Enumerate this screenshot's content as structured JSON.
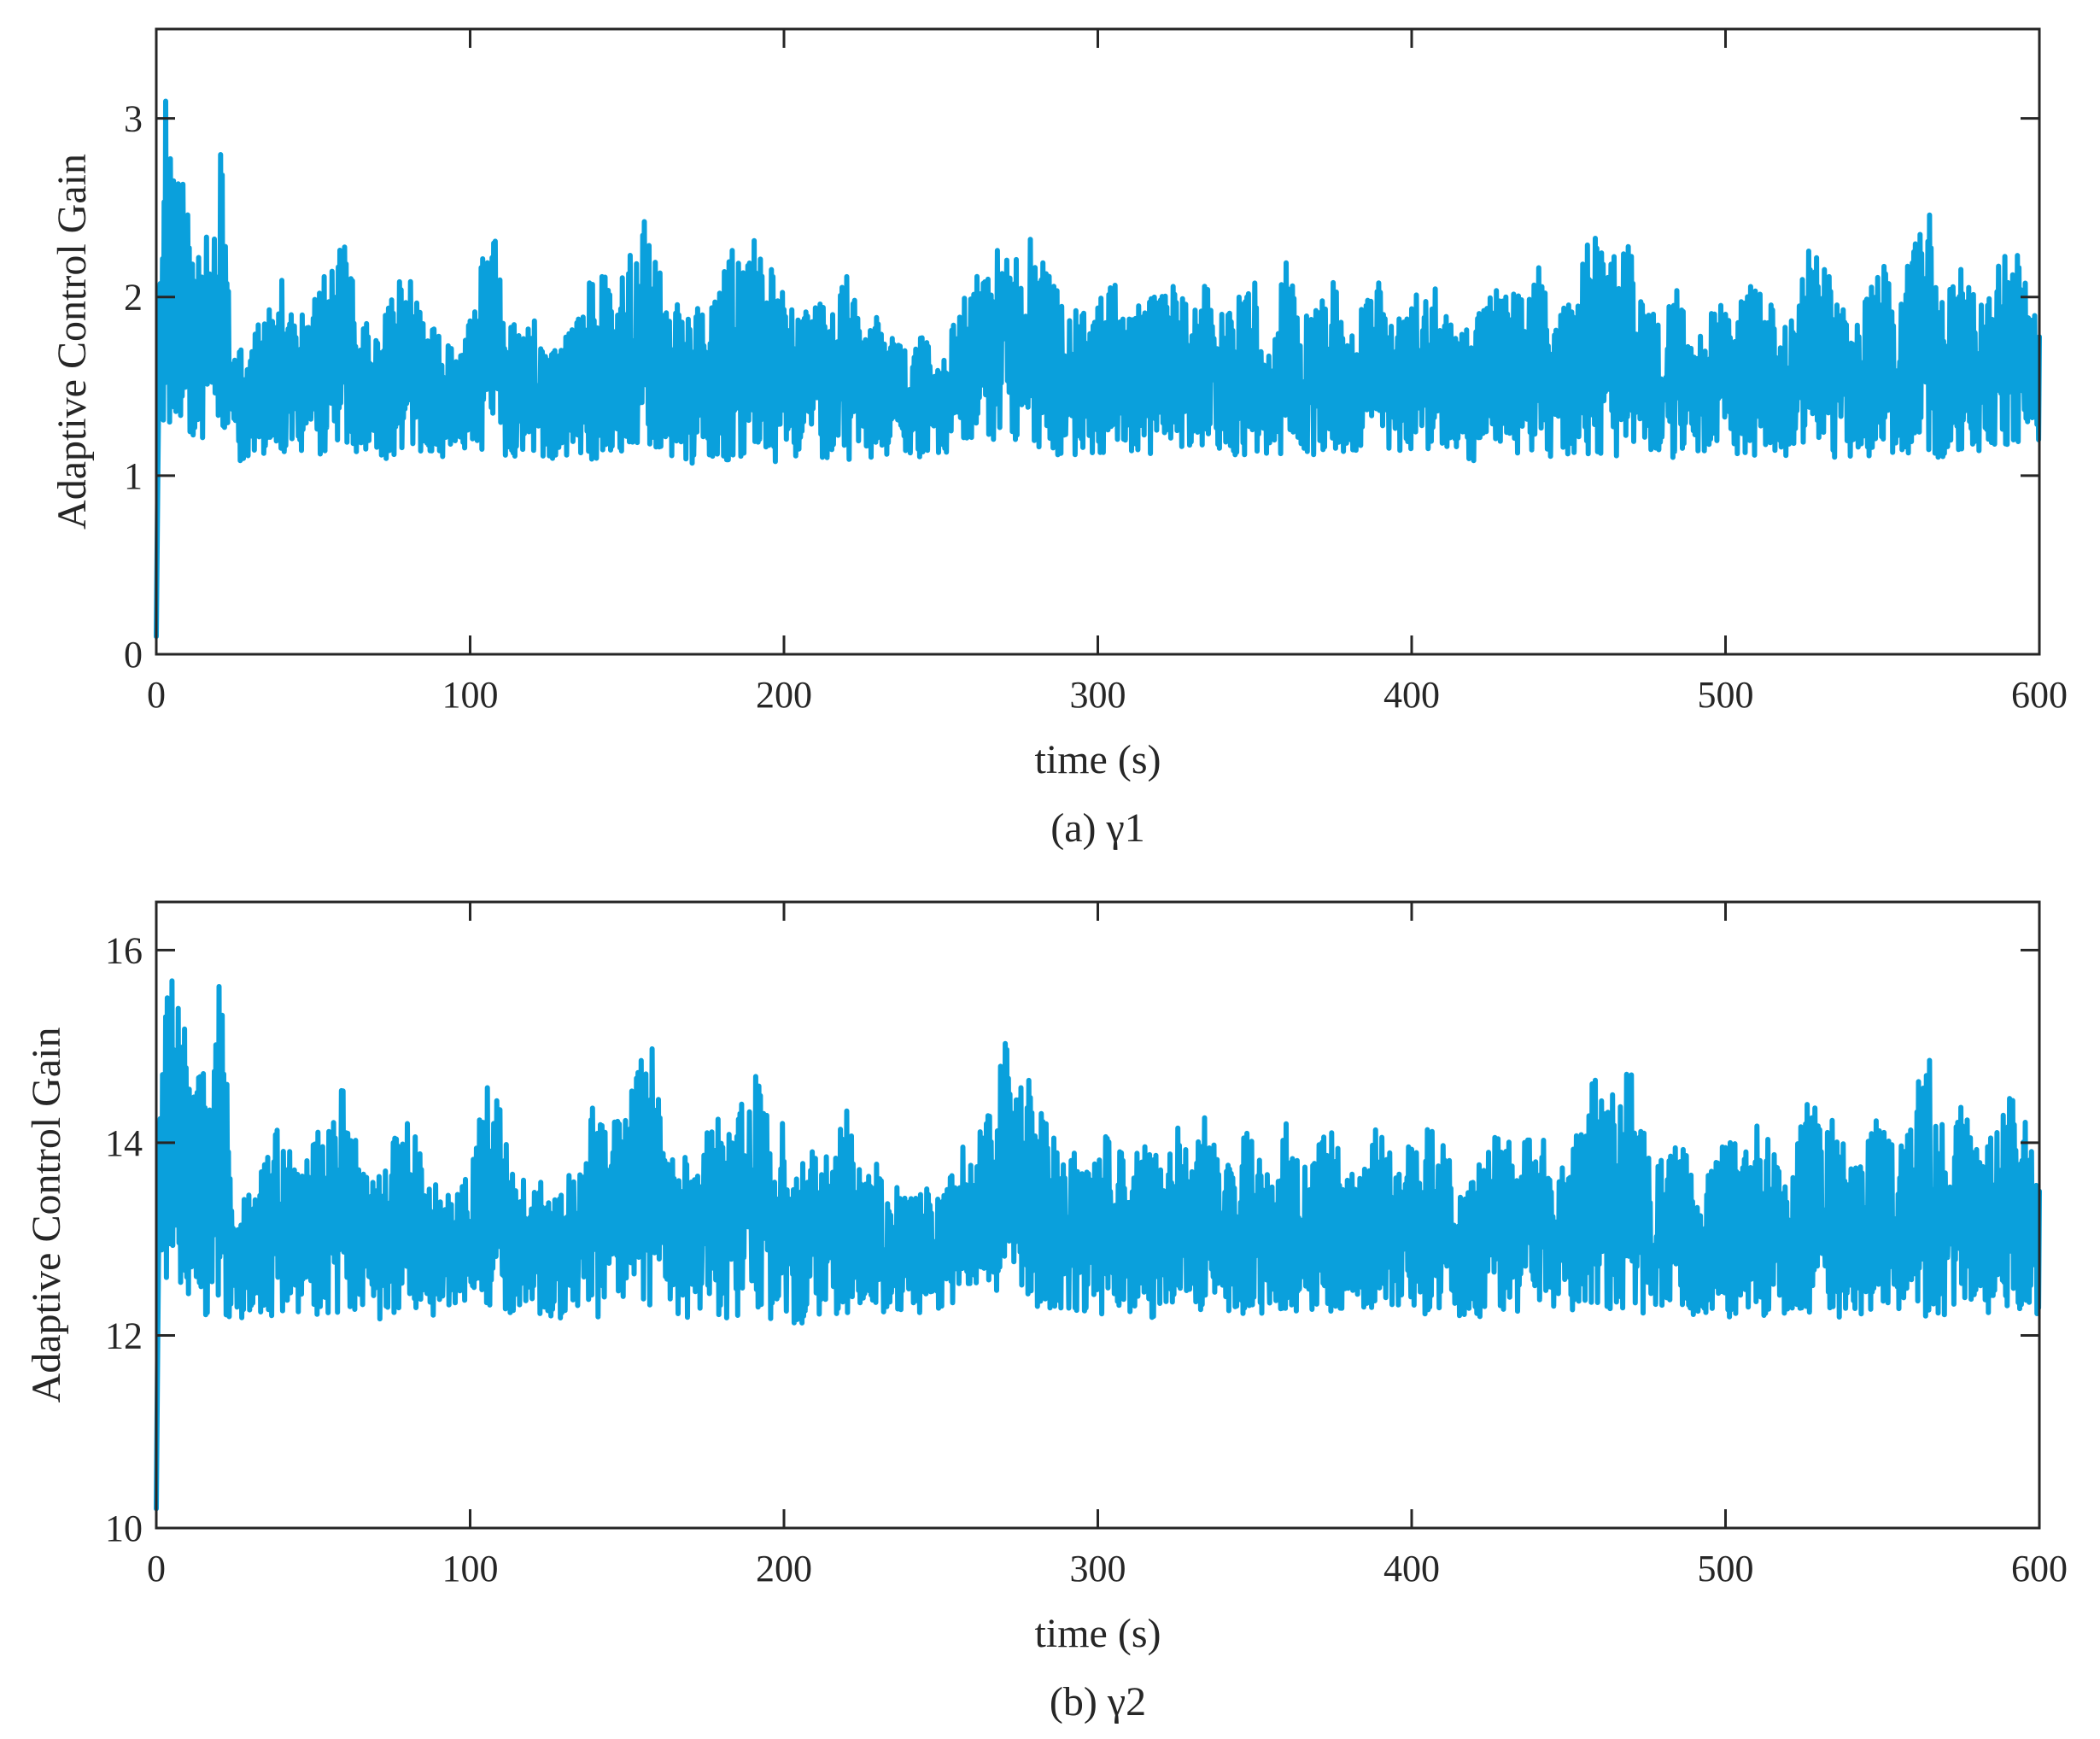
{
  "chart_data": [
    {
      "type": "line",
      "caption": "(a) γ1",
      "xlabel": "time (s)",
      "ylabel": "Adaptive Control Gain",
      "xlim": [
        0,
        600
      ],
      "ylim": [
        0,
        3.5
      ],
      "xticks": [
        0,
        100,
        200,
        300,
        400,
        500,
        600
      ],
      "yticks": [
        0,
        1,
        2,
        3
      ],
      "grid": false,
      "series": [
        {
          "color": "#0aa0dc",
          "x": [
            0,
            1,
            2,
            3,
            4,
            5,
            6,
            8,
            9,
            10,
            12,
            14,
            16,
            18,
            20,
            22,
            24,
            26,
            30,
            35,
            40,
            45,
            50,
            55,
            60,
            65,
            70,
            75,
            80,
            85,
            90,
            95,
            100,
            105,
            108,
            110,
            115,
            120,
            125,
            130,
            135,
            140,
            145,
            150,
            155,
            158,
            160,
            165,
            170,
            175,
            180,
            185,
            190,
            195,
            200,
            205,
            210,
            215,
            220,
            225,
            230,
            235,
            240,
            245,
            250,
            255,
            260,
            265,
            268,
            271,
            273,
            276,
            280,
            285,
            290,
            295,
            300,
            305,
            310,
            315,
            320,
            325,
            330,
            335,
            340,
            345,
            350,
            355,
            360,
            365,
            370,
            375,
            380,
            385,
            390,
            395,
            400,
            405,
            410,
            415,
            420,
            425,
            430,
            435,
            440,
            445,
            450,
            455,
            458,
            462,
            466,
            470,
            475,
            480,
            485,
            490,
            495,
            500,
            505,
            510,
            515,
            520,
            525,
            530,
            535,
            540,
            545,
            550,
            555,
            560,
            565,
            570,
            575,
            580,
            585,
            590,
            595,
            600
          ],
          "y_upper": [
            0.1,
            1.9,
            2.6,
            3.1,
            2.7,
            2.9,
            2.5,
            2.9,
            2.8,
            2.5,
            2.2,
            2.4,
            2.5,
            2.2,
            2.9,
            2.5,
            1.8,
            1.7,
            1.8,
            1.9,
            2.1,
            1.9,
            2.0,
            2.2,
            2.3,
            1.9,
            1.8,
            2.0,
            2.2,
            1.9,
            1.8,
            1.7,
            1.9,
            2.3,
            2.55,
            2.1,
            1.8,
            1.9,
            1.7,
            1.8,
            1.9,
            2.3,
            2.1,
            2.2,
            2.5,
            2.5,
            2.3,
            2.0,
            1.9,
            2.1,
            2.2,
            2.3,
            2.4,
            2.2,
            2.1,
            1.9,
            2.0,
            1.9,
            2.2,
            1.8,
            1.9,
            1.8,
            1.7,
            1.8,
            1.7,
            1.9,
            2.1,
            2.2,
            2.3,
            2.65,
            2.4,
            2.4,
            2.35,
            2.1,
            2.0,
            1.9,
            2.0,
            2.1,
            1.9,
            2.0,
            2.0,
            2.1,
            1.9,
            2.2,
            1.9,
            2.0,
            2.1,
            1.8,
            2.2,
            1.9,
            2.0,
            2.1,
            1.8,
            2.0,
            2.1,
            1.9,
            2.0,
            2.1,
            2.0,
            1.8,
            1.9,
            2.0,
            2.1,
            2.0,
            2.2,
            1.9,
            2.0,
            2.3,
            2.35,
            2.2,
            2.3,
            2.4,
            2.0,
            1.9,
            2.1,
            1.8,
            1.9,
            2.0,
            2.0,
            2.1,
            2.0,
            1.8,
            2.3,
            2.2,
            2.1,
            1.9,
            2.0,
            2.2,
            2.0,
            2.3,
            2.5,
            2.0,
            2.2,
            2.0,
            2.1,
            2.3,
            2.2,
            1.8
          ],
          "y_lower": [
            0.1,
            1.0,
            1.2,
            1.3,
            1.25,
            1.2,
            1.25,
            1.2,
            1.2,
            1.2,
            1.2,
            1.15,
            1.1,
            1.15,
            1.1,
            1.1,
            1.05,
            1.05,
            1.1,
            1.1,
            1.1,
            1.12,
            1.1,
            1.1,
            1.12,
            1.1,
            1.08,
            1.1,
            1.12,
            1.1,
            1.1,
            1.12,
            1.1,
            1.15,
            1.15,
            1.1,
            1.1,
            1.12,
            1.1,
            1.08,
            1.1,
            1.08,
            1.1,
            1.12,
            1.1,
            1.15,
            1.1,
            1.1,
            1.05,
            1.1,
            1.08,
            1.1,
            1.1,
            1.08,
            1.05,
            1.05,
            1.1,
            1.1,
            1.05,
            1.1,
            1.1,
            1.12,
            1.1,
            1.1,
            1.12,
            1.15,
            1.2,
            1.2,
            1.2,
            1.25,
            1.2,
            1.2,
            1.15,
            1.1,
            1.08,
            1.1,
            1.1,
            1.1,
            1.12,
            1.08,
            1.1,
            1.1,
            1.1,
            1.12,
            1.1,
            1.08,
            1.1,
            1.1,
            1.12,
            1.1,
            1.1,
            1.08,
            1.1,
            1.1,
            1.12,
            1.1,
            1.1,
            1.1,
            1.12,
            1.1,
            1.08,
            1.1,
            1.1,
            1.1,
            1.12,
            1.1,
            1.1,
            1.1,
            1.08,
            1.1,
            1.1,
            1.12,
            1.1,
            1.08,
            1.1,
            1.1,
            1.12,
            1.1,
            1.08,
            1.1,
            1.1,
            1.1,
            1.12,
            1.1,
            1.1,
            1.08,
            1.1,
            1.12,
            1.1,
            1.1,
            1.1,
            1.1,
            1.12,
            1.1,
            1.1,
            1.1,
            1.15,
            1.1
          ]
        }
      ]
    },
    {
      "type": "line",
      "caption": "(b) γ2",
      "xlabel": "time (s)",
      "ylabel": "Adaptive Control Gain",
      "xlim": [
        0,
        600
      ],
      "ylim": [
        10,
        16.5
      ],
      "xticks": [
        0,
        100,
        200,
        300,
        400,
        500,
        600
      ],
      "yticks": [
        10,
        12,
        14,
        16
      ],
      "grid": false,
      "series": [
        {
          "color": "#0aa0dc",
          "x": [
            0,
            1,
            2,
            3,
            4,
            5,
            6,
            8,
            9,
            10,
            12,
            14,
            16,
            18,
            20,
            22,
            24,
            26,
            30,
            35,
            40,
            45,
            50,
            55,
            60,
            65,
            70,
            75,
            80,
            85,
            90,
            95,
            100,
            105,
            108,
            110,
            115,
            120,
            125,
            130,
            135,
            140,
            145,
            150,
            155,
            158,
            160,
            165,
            170,
            175,
            180,
            185,
            190,
            195,
            200,
            205,
            210,
            215,
            220,
            225,
            230,
            235,
            240,
            245,
            250,
            255,
            260,
            265,
            268,
            271,
            273,
            276,
            280,
            285,
            290,
            295,
            300,
            305,
            310,
            315,
            320,
            325,
            330,
            335,
            340,
            345,
            350,
            355,
            360,
            365,
            370,
            375,
            380,
            385,
            390,
            395,
            400,
            405,
            410,
            415,
            420,
            425,
            430,
            435,
            440,
            445,
            450,
            455,
            458,
            462,
            466,
            470,
            475,
            480,
            485,
            490,
            495,
            500,
            505,
            510,
            515,
            520,
            525,
            530,
            535,
            540,
            545,
            550,
            555,
            560,
            565,
            570,
            575,
            580,
            585,
            590,
            595,
            600
          ],
          "y_upper": [
            10.2,
            13.9,
            15.3,
            16.2,
            15.4,
            15.8,
            15.0,
            15.8,
            15.6,
            15.1,
            14.6,
            14.8,
            15.0,
            14.6,
            15.8,
            15.0,
            13.5,
            13.3,
            13.6,
            13.8,
            14.3,
            13.8,
            14.0,
            14.4,
            14.6,
            13.8,
            13.6,
            14.0,
            14.4,
            13.8,
            13.6,
            13.4,
            13.8,
            14.6,
            15.05,
            14.2,
            13.6,
            13.8,
            13.4,
            13.6,
            13.8,
            14.6,
            14.2,
            14.4,
            15.0,
            15.0,
            14.6,
            14.0,
            13.8,
            14.2,
            14.4,
            14.6,
            14.8,
            14.4,
            14.2,
            13.8,
            14.0,
            13.8,
            14.4,
            13.6,
            13.8,
            13.6,
            13.4,
            13.6,
            13.4,
            13.8,
            14.2,
            14.4,
            14.6,
            15.3,
            14.8,
            14.8,
            14.7,
            14.2,
            14.0,
            13.8,
            14.0,
            14.2,
            13.8,
            14.0,
            14.0,
            14.2,
            13.8,
            14.4,
            13.8,
            14.0,
            14.2,
            13.6,
            14.4,
            13.8,
            14.0,
            14.2,
            13.6,
            14.0,
            14.2,
            13.8,
            14.0,
            14.2,
            14.0,
            13.6,
            13.8,
            14.0,
            14.2,
            14.0,
            14.4,
            13.8,
            14.0,
            14.6,
            14.7,
            14.4,
            14.6,
            14.8,
            14.0,
            13.8,
            14.2,
            13.6,
            13.8,
            14.0,
            14.0,
            14.2,
            14.0,
            13.6,
            14.6,
            14.4,
            14.2,
            13.8,
            14.0,
            14.4,
            14.0,
            14.6,
            15.0,
            14.0,
            14.4,
            14.0,
            14.2,
            14.6,
            14.4,
            13.6
          ],
          "y_lower": [
            10.2,
            12.0,
            12.4,
            12.6,
            12.5,
            12.4,
            12.5,
            12.4,
            12.4,
            12.4,
            12.4,
            12.3,
            12.2,
            12.3,
            12.2,
            12.2,
            12.1,
            12.1,
            12.2,
            12.2,
            12.2,
            12.24,
            12.2,
            12.2,
            12.24,
            12.2,
            12.16,
            12.2,
            12.24,
            12.2,
            12.2,
            12.24,
            12.2,
            12.3,
            12.3,
            12.2,
            12.2,
            12.24,
            12.2,
            12.16,
            12.2,
            12.16,
            12.2,
            12.24,
            12.2,
            12.3,
            12.2,
            12.2,
            12.1,
            12.2,
            12.16,
            12.2,
            12.2,
            12.16,
            12.1,
            12.1,
            12.2,
            12.2,
            12.1,
            12.2,
            12.2,
            12.24,
            12.2,
            12.2,
            12.24,
            12.3,
            12.4,
            12.4,
            12.4,
            12.5,
            12.4,
            12.4,
            12.3,
            12.2,
            12.16,
            12.2,
            12.2,
            12.2,
            12.24,
            12.16,
            12.2,
            12.2,
            12.2,
            12.24,
            12.2,
            12.16,
            12.2,
            12.2,
            12.24,
            12.2,
            12.2,
            12.16,
            12.2,
            12.2,
            12.24,
            12.2,
            12.2,
            12.2,
            12.24,
            12.2,
            12.16,
            12.2,
            12.2,
            12.2,
            12.24,
            12.2,
            12.2,
            12.2,
            12.16,
            12.2,
            12.2,
            12.24,
            12.2,
            12.16,
            12.2,
            12.2,
            12.24,
            12.2,
            12.16,
            12.2,
            12.2,
            12.2,
            12.24,
            12.2,
            12.2,
            12.16,
            12.2,
            12.24,
            12.2,
            12.2,
            12.2,
            12.2,
            12.24,
            12.2,
            12.2,
            12.2,
            12.3,
            12.2
          ]
        }
      ]
    }
  ]
}
